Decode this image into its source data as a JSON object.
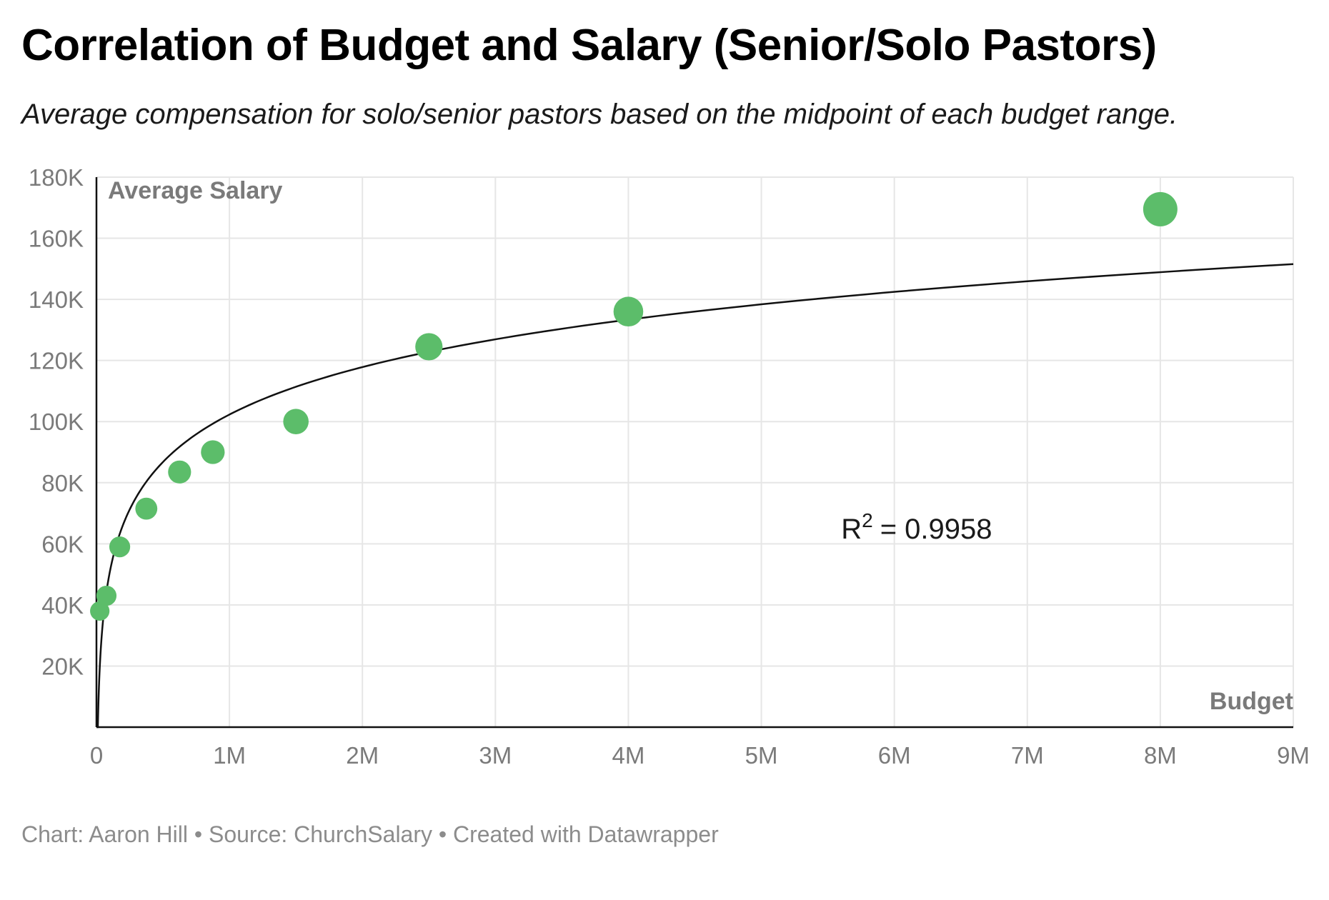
{
  "header": {
    "title": "Correlation of Budget and Salary (Senior/Solo Pastors)",
    "subtitle": "Average compensation for solo/senior pastors based on the midpoint of each budget range."
  },
  "footer": {
    "credit": "Chart: Aaron Hill • Source: ChurchSalary • Created with Datawrapper"
  },
  "colors": {
    "points": "#5cbd6a",
    "trendline": "#111111",
    "grid": "#e6e6e6",
    "axis": "#111111",
    "label": "#7a7a7a"
  },
  "chart_data": {
    "type": "scatter",
    "title": "Correlation of Budget and Salary (Senior/Solo Pastors)",
    "subtitle": "Average compensation for solo/senior pastors based on the midpoint of each budget range.",
    "xlabel": "Budget",
    "ylabel": "Average Salary",
    "xlim": [
      0,
      9000000
    ],
    "ylim": [
      0,
      180000
    ],
    "x_ticks": [
      0,
      1000000,
      2000000,
      3000000,
      4000000,
      5000000,
      6000000,
      7000000,
      8000000,
      9000000
    ],
    "x_tick_labels": [
      "0",
      "1M",
      "2M",
      "3M",
      "4M",
      "5M",
      "6M",
      "7M",
      "8M",
      "9M"
    ],
    "y_ticks": [
      20000,
      40000,
      60000,
      80000,
      100000,
      120000,
      140000,
      160000,
      180000
    ],
    "y_tick_labels": [
      "20K",
      "40K",
      "60K",
      "80K",
      "100K",
      "120K",
      "140K",
      "160K",
      "180K"
    ],
    "grid": true,
    "points": [
      {
        "x": 25000,
        "y": 38000
      },
      {
        "x": 75000,
        "y": 43000
      },
      {
        "x": 175000,
        "y": 59000
      },
      {
        "x": 375000,
        "y": 71500
      },
      {
        "x": 625000,
        "y": 83500
      },
      {
        "x": 875000,
        "y": 90000
      },
      {
        "x": 1500000,
        "y": 100000
      },
      {
        "x": 2500000,
        "y": 124500
      },
      {
        "x": 4000000,
        "y": 136000
      },
      {
        "x": 8000000,
        "y": 169500
      }
    ],
    "trendline": {
      "type": "logarithmic",
      "r_squared_label": "R",
      "r_squared_sup": "2",
      "r_squared_value": "= 0.9958"
    }
  }
}
